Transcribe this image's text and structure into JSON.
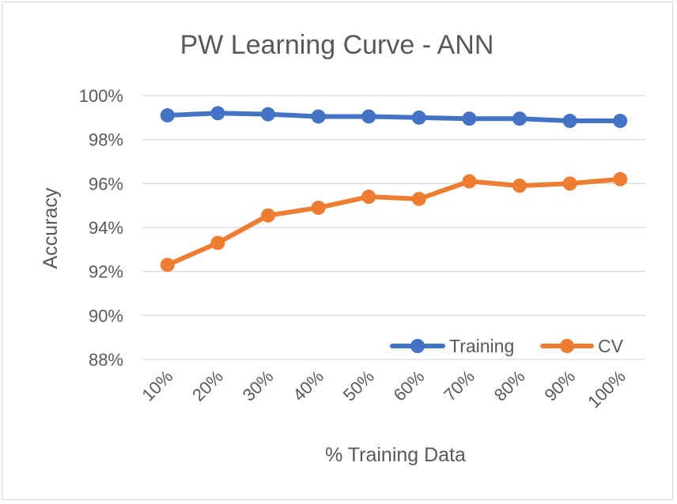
{
  "chart_data": {
    "type": "line",
    "title": "PW Learning Curve - ANN",
    "xlabel": "% Training Data",
    "ylabel": "Accuracy",
    "categories": [
      "10%",
      "20%",
      "30%",
      "40%",
      "50%",
      "60%",
      "70%",
      "80%",
      "90%",
      "100%"
    ],
    "ylim": [
      88,
      100
    ],
    "yticks": [
      88,
      90,
      92,
      94,
      96,
      98,
      100
    ],
    "ytick_labels": [
      "88%",
      "90%",
      "92%",
      "94%",
      "96%",
      "98%",
      "100%"
    ],
    "grid": true,
    "legend_position": "bottom-right",
    "series": [
      {
        "name": "Training",
        "color": "#4472c4",
        "values": [
          99.1,
          99.2,
          99.15,
          99.05,
          99.05,
          99.0,
          98.95,
          98.95,
          98.85,
          98.85
        ]
      },
      {
        "name": "CV",
        "color": "#ed7d31",
        "values": [
          92.3,
          93.3,
          94.55,
          94.9,
          95.4,
          95.3,
          96.1,
          95.9,
          96.0,
          96.2
        ]
      }
    ]
  }
}
